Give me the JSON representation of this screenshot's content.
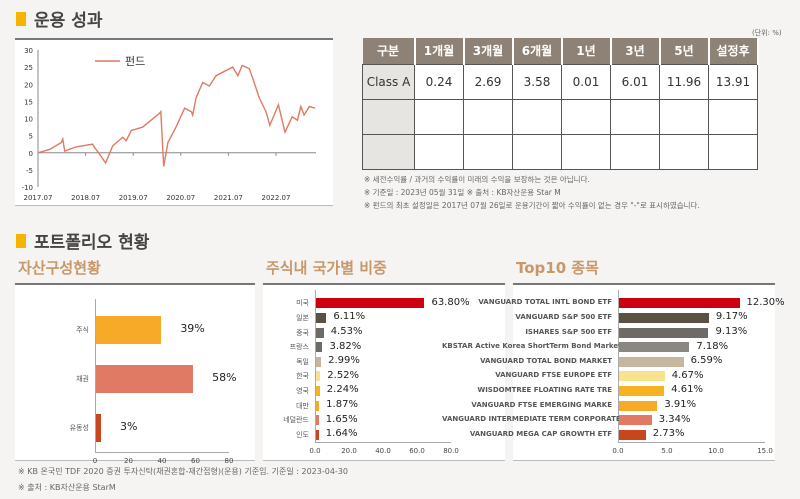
{
  "performance": {
    "title": "운용 성과",
    "unit_note": "(단위: %)",
    "line_chart": {
      "type": "line",
      "legend": "펀드",
      "ylim": [
        -10,
        30
      ],
      "yticks": [
        "30",
        "25",
        "20",
        "15",
        "10",
        "5",
        "0",
        "-5",
        "-10"
      ],
      "xticks": [
        "2017.07",
        "2018.07",
        "2019.07",
        "2020.07",
        "2021.07",
        "2022.07"
      ],
      "color": "#e07a60"
    },
    "table": {
      "headers": [
        "구분",
        "1개월",
        "3개월",
        "6개월",
        "1년",
        "3년",
        "5년",
        "설정후"
      ],
      "rows": [
        [
          "Class A",
          "0.24",
          "2.69",
          "3.58",
          "0.01",
          "6.01",
          "11.96",
          "13.91"
        ],
        [
          "",
          "",
          "",
          "",
          "",
          "",
          "",
          ""
        ],
        [
          "",
          "",
          "",
          "",
          "",
          "",
          "",
          ""
        ]
      ]
    },
    "notes": [
      "※ 세전수익률 / 과거의 수익률이 미래의 수익을 보장하는 것은 아닙니다.",
      "※ 기준일 : 2023년 05월 31일  ※ 출처 : KB자산운용 Star M",
      "※ 펀드의 최초 설정일은 2017년 07월 26일로 운용기간이 짧아 수익률이 없는 경우 \"-\"로 표시하였습니다."
    ]
  },
  "portfolio": {
    "title": "포트폴리오 현황",
    "asset": {
      "title": "자산구성현황"
    },
    "country": {
      "title": "주식내 국가별 비중"
    },
    "top10": {
      "title": "Top10 종목"
    },
    "footnotes": [
      "※ KB 온국민 TDF 2020 증권 투자신탁(채권혼합-재간접형)(운용) 기준임. 기준일 : 2023-04-30",
      "※ 출처 : KB자산운용 StarM"
    ]
  },
  "chart_data": [
    {
      "type": "line",
      "series": [
        {
          "name": "펀드",
          "x": [
            2017.5,
            2017.75,
            2017.99,
            2018.02,
            2018.06,
            2018.3,
            2018.65,
            2018.69,
            2018.8,
            2018.92,
            2019.07,
            2019.28,
            2019.35,
            2019.46,
            2019.7,
            2020.05,
            2020.08,
            2020.14,
            2020.23,
            2020.4,
            2020.58,
            2020.72,
            2020.75,
            2020.82,
            2020.96,
            2021.1,
            2021.24,
            2021.59,
            2021.7,
            2021.79,
            2021.94,
            2022.03,
            2022.15,
            2022.29,
            2022.37,
            2022.46,
            2022.55,
            2022.69,
            2022.84,
            2022.95,
            2023.02,
            2023.09,
            2023.2,
            2023.32
          ],
          "y": [
            0,
            1,
            3,
            4,
            0.5,
            1.7,
            2.5,
            1.5,
            -0.5,
            -3,
            2,
            4.5,
            3.5,
            6.5,
            7.5,
            11.5,
            12,
            -4,
            3,
            7.5,
            13,
            12,
            11,
            16,
            20.5,
            19.5,
            22.5,
            25,
            22.5,
            25.5,
            24.5,
            21,
            16,
            12,
            8,
            11,
            14,
            6,
            10.5,
            9.5,
            13.5,
            11,
            13.5,
            13
          ]
        }
      ],
      "ylim": [
        -10,
        30
      ],
      "xlabel": "",
      "ylabel": ""
    },
    {
      "type": "bar",
      "orientation": "horizontal",
      "categories": [
        "주식",
        "채권",
        "유동성"
      ],
      "values": [
        39,
        58,
        3
      ],
      "labels": [
        "39%",
        "58%",
        "3%"
      ],
      "colors": [
        "#f7a928",
        "#e07a65",
        "#c8461f"
      ],
      "xlim": [
        0,
        80
      ],
      "xticks": [
        "0",
        "20",
        "40",
        "60",
        "80"
      ]
    },
    {
      "type": "bar",
      "orientation": "horizontal",
      "categories": [
        "미국",
        "일본",
        "중국",
        "프랑스",
        "독일",
        "한국",
        "영국",
        "대만",
        "네덜란드",
        "인도"
      ],
      "values": [
        63.8,
        6.11,
        4.53,
        3.82,
        2.99,
        2.52,
        2.24,
        1.87,
        1.65,
        1.64
      ],
      "labels": [
        "63.80%",
        "6.11%",
        "4.53%",
        "3.82%",
        "2.99%",
        "2.52%",
        "2.24%",
        "1.87%",
        "1.65%",
        "1.64%"
      ],
      "colors": [
        "#cc0010",
        "#5c5045",
        "#6e6a66",
        "#6e6a66",
        "#c5b79f",
        "#f8e28e",
        "#f7b21f",
        "#f7a928",
        "#e07a65",
        "#c8461f"
      ],
      "xlim": [
        0,
        80
      ],
      "xticks": [
        "0.0",
        "20.0",
        "40.0",
        "60.0",
        "80.0"
      ]
    },
    {
      "type": "bar",
      "orientation": "horizontal",
      "categories": [
        "VANGUARD TOTAL INTL BOND ETF",
        "VANGUARD S&P 500 ETF",
        "ISHARES S&P 500 ETF",
        "KBSTAR Active Korea ShortTerm Bond Market(AA-) ETF",
        "VANGUARD TOTAL BOND MARKET",
        "VANGUARD FTSE EUROPE ETF",
        "WISDOMTREE FLOATING RATE TRE",
        "VANGUARD FTSE EMERGING MARKE",
        "VANGUARD INTERMEDIATE TERM CORPORATE ETF",
        "VANGUARD MEGA CAP GROWTH ETF"
      ],
      "values": [
        12.3,
        9.17,
        9.13,
        7.18,
        6.59,
        4.67,
        4.61,
        3.91,
        3.34,
        2.73
      ],
      "labels": [
        "12.30%",
        "9.17%",
        "9.13%",
        "7.18%",
        "6.59%",
        "4.67%",
        "4.61%",
        "3.91%",
        "3.34%",
        "2.73%"
      ],
      "colors": [
        "#cc0010",
        "#5c5045",
        "#6e6a66",
        "#8a8682",
        "#c5b79f",
        "#f8e28e",
        "#f7b21f",
        "#f7a928",
        "#e07a65",
        "#c8461f"
      ],
      "xlim": [
        0,
        15
      ],
      "xticks": [
        "0.0",
        "5.0",
        "10.0",
        "15.0"
      ]
    }
  ]
}
